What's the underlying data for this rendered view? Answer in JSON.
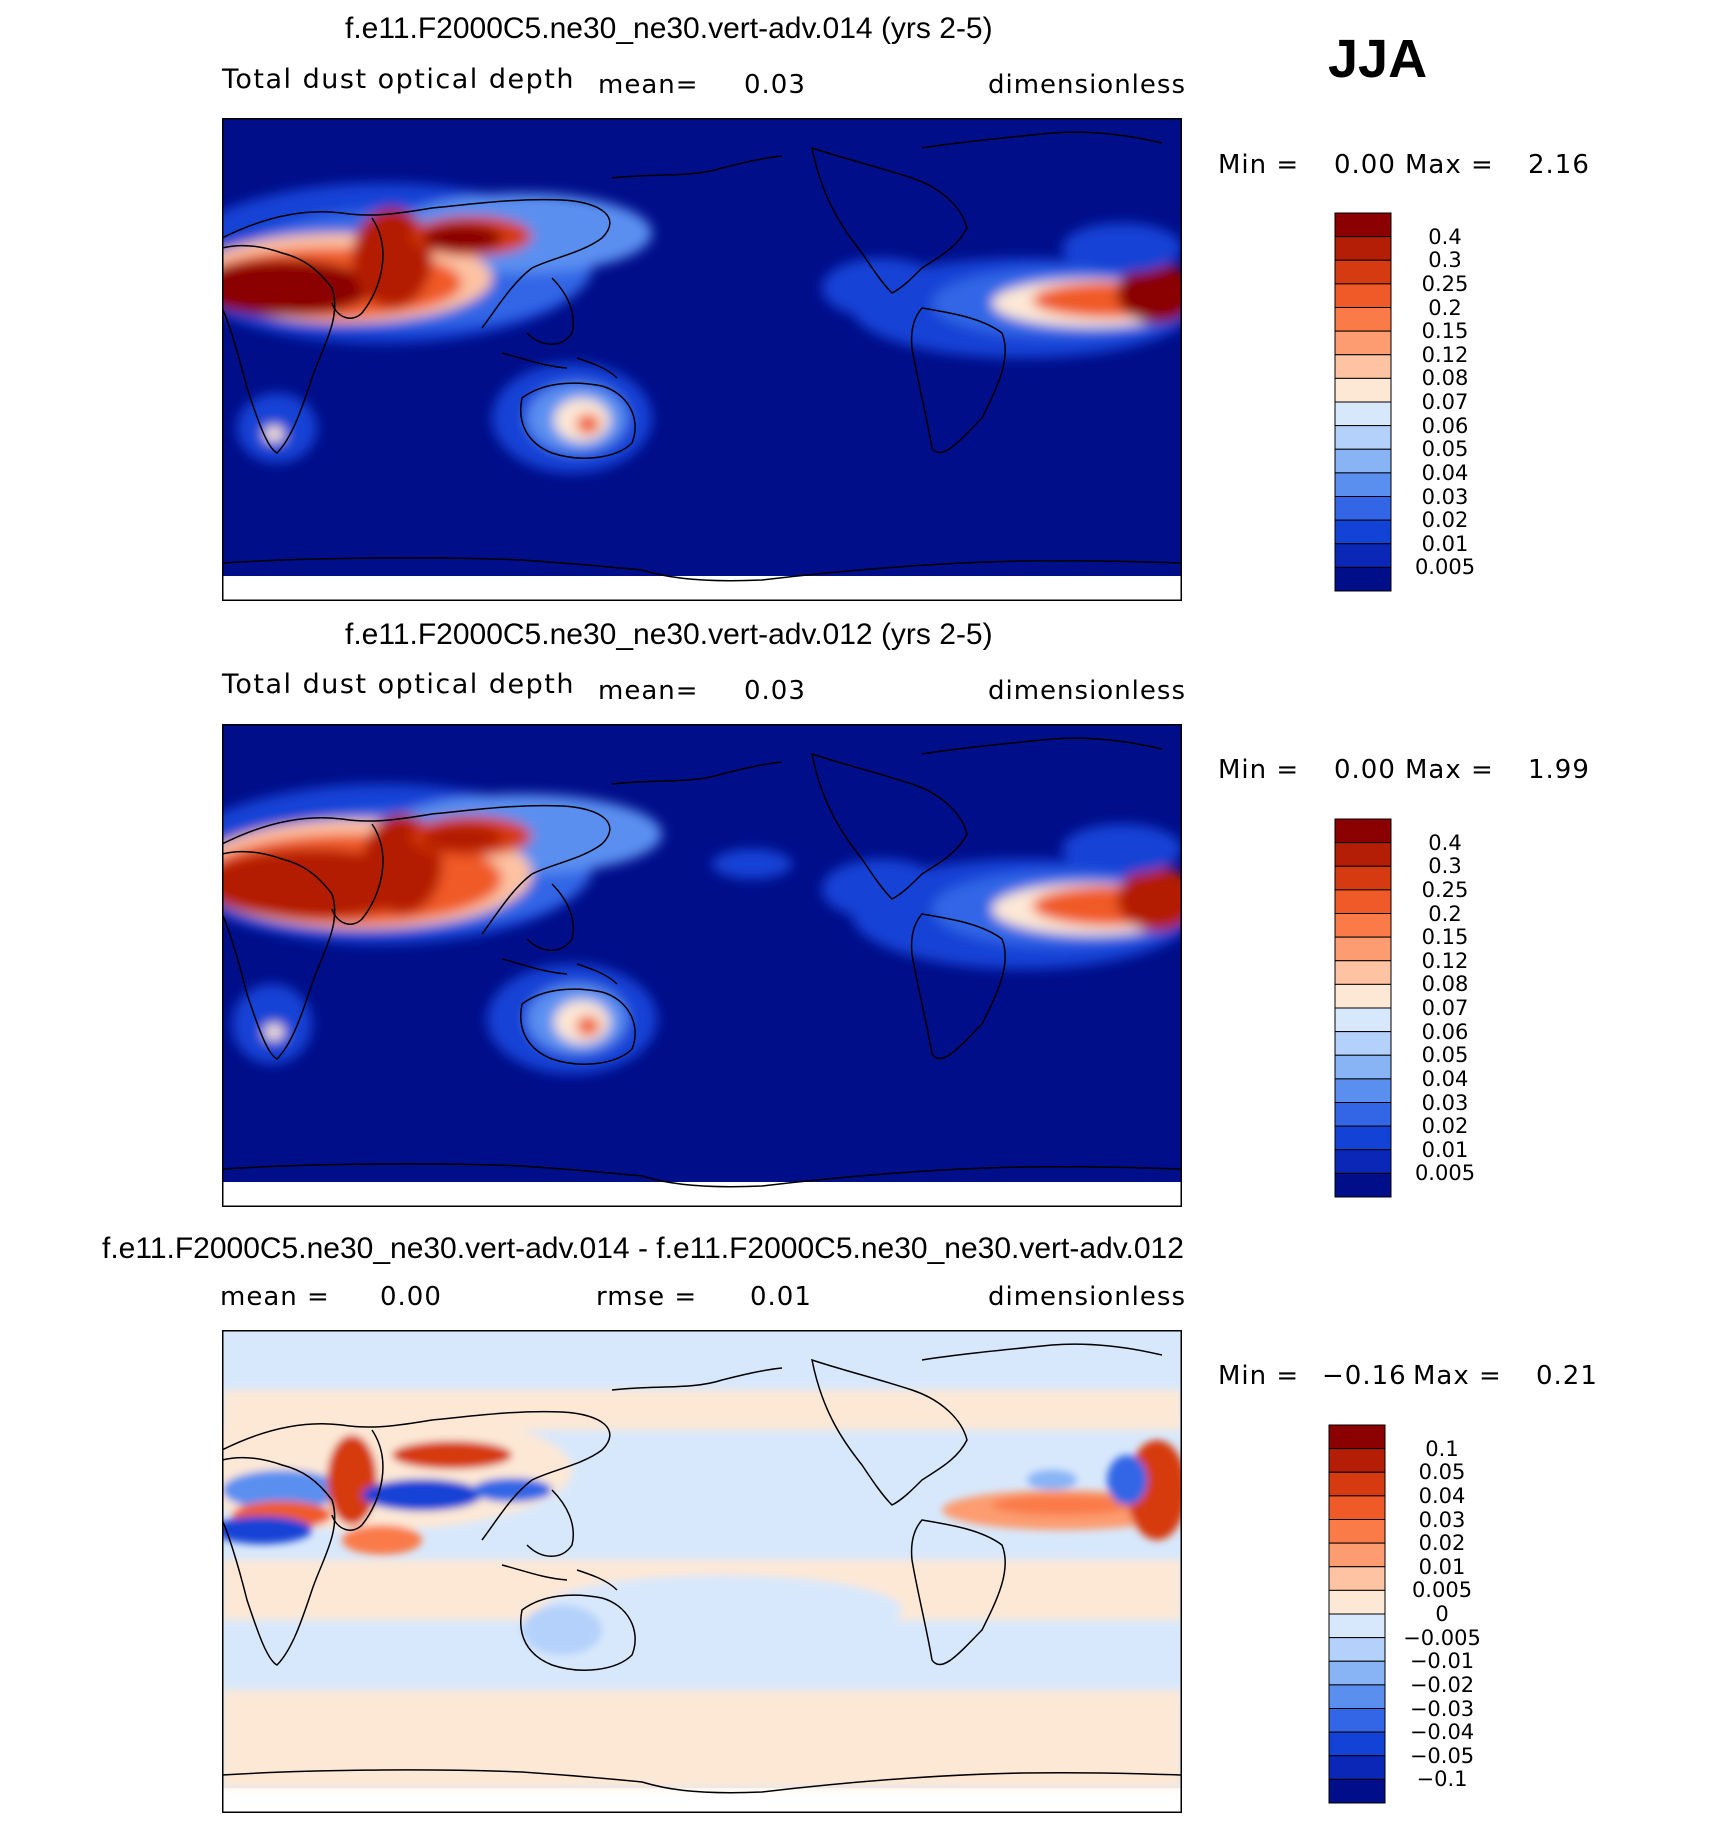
{
  "season": "JJA",
  "panels": [
    {
      "title": "f.e11.F2000C5.ne30_ne30.vert-adv.014 (yrs 2-5)",
      "variable": "Total dust optical depth",
      "mean_label": "mean=",
      "mean_value": "0.03",
      "rmse_label": "",
      "rmse_value": "",
      "units": "dimensionless",
      "min_label": "Min =",
      "min_value": "0.00",
      "max_label": "Max =",
      "max_value": "2.16"
    },
    {
      "title": "f.e11.F2000C5.ne30_ne30.vert-adv.012 (yrs 2-5)",
      "variable": "Total dust optical depth",
      "mean_label": "mean=",
      "mean_value": "0.03",
      "rmse_label": "",
      "rmse_value": "",
      "units": "dimensionless",
      "min_label": "Min =",
      "min_value": "0.00",
      "max_label": "Max =",
      "max_value": "1.99"
    },
    {
      "title": "f.e11.F2000C5.ne30_ne30.vert-adv.014 - f.e11.F2000C5.ne30_ne30.vert-adv.012",
      "variable": "",
      "mean_label": "mean =",
      "mean_value": "0.00",
      "rmse_label": "rmse =",
      "rmse_value": "0.01",
      "units": "dimensionless",
      "min_label": "Min =",
      "min_value": "−0.16",
      "max_label": "Max =",
      "max_value": "0.21"
    }
  ],
  "chart_data": [
    {
      "type": "heatmap",
      "title": "f.e11.F2000C5.ne30_ne30.vert-adv.014 (yrs 2-5)",
      "colorbar_levels": [
        "0.4",
        "0.3",
        "0.25",
        "0.2",
        "0.15",
        "0.12",
        "0.08",
        "0.07",
        "0.06",
        "0.05",
        "0.04",
        "0.03",
        "0.02",
        "0.01",
        "0.005"
      ],
      "colorbar_colors": [
        "#8b0000",
        "#b41e06",
        "#d63a10",
        "#f05a28",
        "#fa7a48",
        "#fc9c70",
        "#fdc3a3",
        "#fde8d6",
        "#d8e8fc",
        "#b4d1fb",
        "#88b4f6",
        "#5a8ff0",
        "#3366e6",
        "#1342d6",
        "#0a27b8",
        "#000e8a"
      ],
      "units": "dimensionless",
      "mean": 0.03,
      "min": 0.0,
      "max": 2.16
    },
    {
      "type": "heatmap",
      "title": "f.e11.F2000C5.ne30_ne30.vert-adv.012 (yrs 2-5)",
      "colorbar_levels": [
        "0.4",
        "0.3",
        "0.25",
        "0.2",
        "0.15",
        "0.12",
        "0.08",
        "0.07",
        "0.06",
        "0.05",
        "0.04",
        "0.03",
        "0.02",
        "0.01",
        "0.005"
      ],
      "colorbar_colors": [
        "#8b0000",
        "#b41e06",
        "#d63a10",
        "#f05a28",
        "#fa7a48",
        "#fc9c70",
        "#fdc3a3",
        "#fde8d6",
        "#d8e8fc",
        "#b4d1fb",
        "#88b4f6",
        "#5a8ff0",
        "#3366e6",
        "#1342d6",
        "#0a27b8",
        "#000e8a"
      ],
      "units": "dimensionless",
      "mean": 0.03,
      "min": 0.0,
      "max": 1.99
    },
    {
      "type": "heatmap",
      "title": "f.e11.F2000C5.ne30_ne30.vert-adv.014 - f.e11.F2000C5.ne30_ne30.vert-adv.012",
      "colorbar_levels": [
        "0.1",
        "0.05",
        "0.04",
        "0.03",
        "0.02",
        "0.01",
        "0.005",
        "0",
        "−0.005",
        "−0.01",
        "−0.02",
        "−0.03",
        "−0.04",
        "−0.05",
        "−0.1"
      ],
      "colorbar_colors": [
        "#8b0000",
        "#b41e06",
        "#d63a10",
        "#f05a28",
        "#fa7a48",
        "#fc9c70",
        "#fdc3a3",
        "#fde8d6",
        "#d8e8fc",
        "#b4d1fb",
        "#88b4f6",
        "#5a8ff0",
        "#3366e6",
        "#1342d6",
        "#0a27b8",
        "#000e8a"
      ],
      "units": "dimensionless",
      "mean": 0.0,
      "rmse": 0.01,
      "min": -0.16,
      "max": 0.21
    }
  ]
}
